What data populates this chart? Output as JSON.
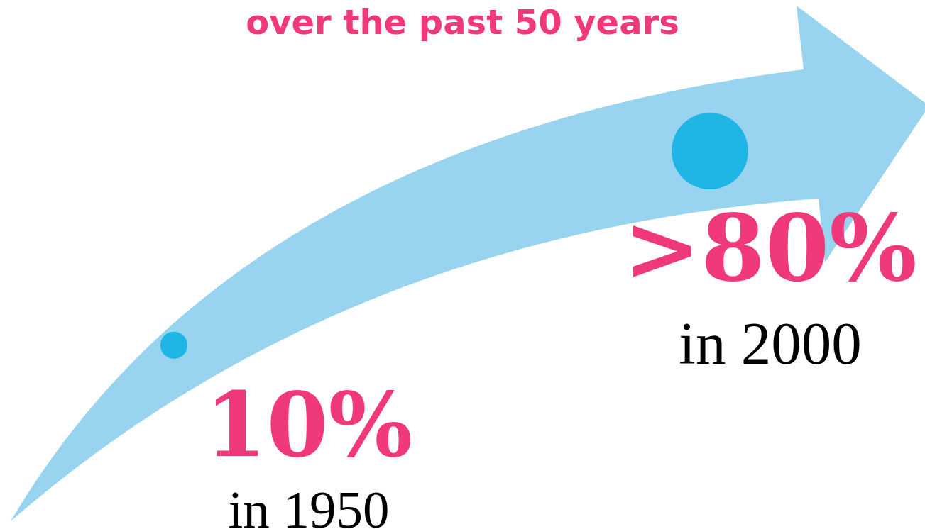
{
  "chart_data": {
    "type": "other",
    "title": "over the past 50 years",
    "categories": [
      "in 1950",
      "in 2000"
    ],
    "values": [
      10,
      80
    ],
    "value_labels": [
      "10%",
      ">80%"
    ],
    "color": "#1fb6e6"
  }
}
